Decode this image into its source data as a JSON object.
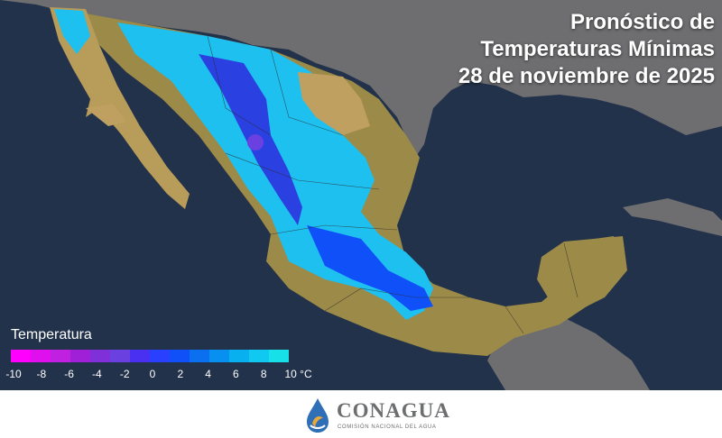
{
  "title": {
    "line1": "Pronóstico de",
    "line2": "Temperaturas Mínimas",
    "line3": "28 de noviembre de 2025"
  },
  "legend": {
    "title": "Temperatura",
    "ticks": [
      "-10",
      "-8",
      "-6",
      "-4",
      "-2",
      "0",
      "2",
      "4",
      "6",
      "8",
      "10 °C"
    ],
    "colors": [
      "#ff00ff",
      "#e010ee",
      "#c020e0",
      "#a020d8",
      "#8030d8",
      "#6a40e0",
      "#4a30f0",
      "#2a40ff",
      "#1050f8",
      "#0a70f0",
      "#0890f0",
      "#08b0f0",
      "#10c8f0",
      "#18e0e8"
    ]
  },
  "logo": {
    "name": "CONAGUA",
    "subtitle": "COMISIÓN NACIONAL DEL AGUA"
  },
  "colors": {
    "ocean": "#22324a",
    "land_neighbor": "#6e6e70",
    "land_warm": "#9c8a48",
    "land_tan": "#c0a060",
    "cold_blue": "#1ec0f0",
    "deep_blue": "#2a40e0"
  }
}
